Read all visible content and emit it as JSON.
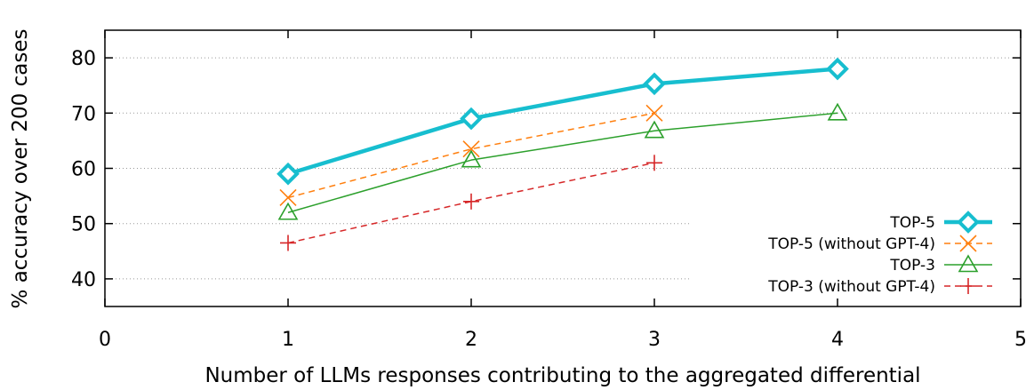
{
  "chart_data": {
    "type": "line",
    "title": "",
    "xlabel": "Number of LLMs responses contributing to the aggregated differential",
    "ylabel": "% accuracy over 200 cases",
    "xlim": [
      0,
      5
    ],
    "ylim": [
      35,
      85
    ],
    "x_ticks": [
      "0",
      "1",
      "2",
      "3",
      "4",
      "5"
    ],
    "y_ticks": [
      "40",
      "50",
      "60",
      "70",
      "80"
    ],
    "grid": "horizontal dotted",
    "legend_position": "bottom-right",
    "series": [
      {
        "name": "TOP-5",
        "color": "#17becf",
        "marker": "diamond",
        "line": "solid-thick",
        "x": [
          1,
          2,
          3,
          4
        ],
        "y": [
          59,
          69,
          75.3,
          78
        ]
      },
      {
        "name": "TOP-5 (without GPT-4)",
        "color": "#ff7f0e",
        "marker": "x",
        "line": "dashed",
        "x": [
          1,
          2,
          3
        ],
        "y": [
          54.7,
          63.5,
          70
        ]
      },
      {
        "name": "TOP-3",
        "color": "#2ca02c",
        "marker": "triangle",
        "line": "solid",
        "x": [
          1,
          2,
          3,
          4
        ],
        "y": [
          52,
          61.5,
          66.8,
          70
        ]
      },
      {
        "name": "TOP-3 (without GPT-4)",
        "color": "#d62728",
        "marker": "plus",
        "line": "dashed",
        "x": [
          1,
          2,
          3
        ],
        "y": [
          46.5,
          54,
          61
        ]
      }
    ]
  }
}
